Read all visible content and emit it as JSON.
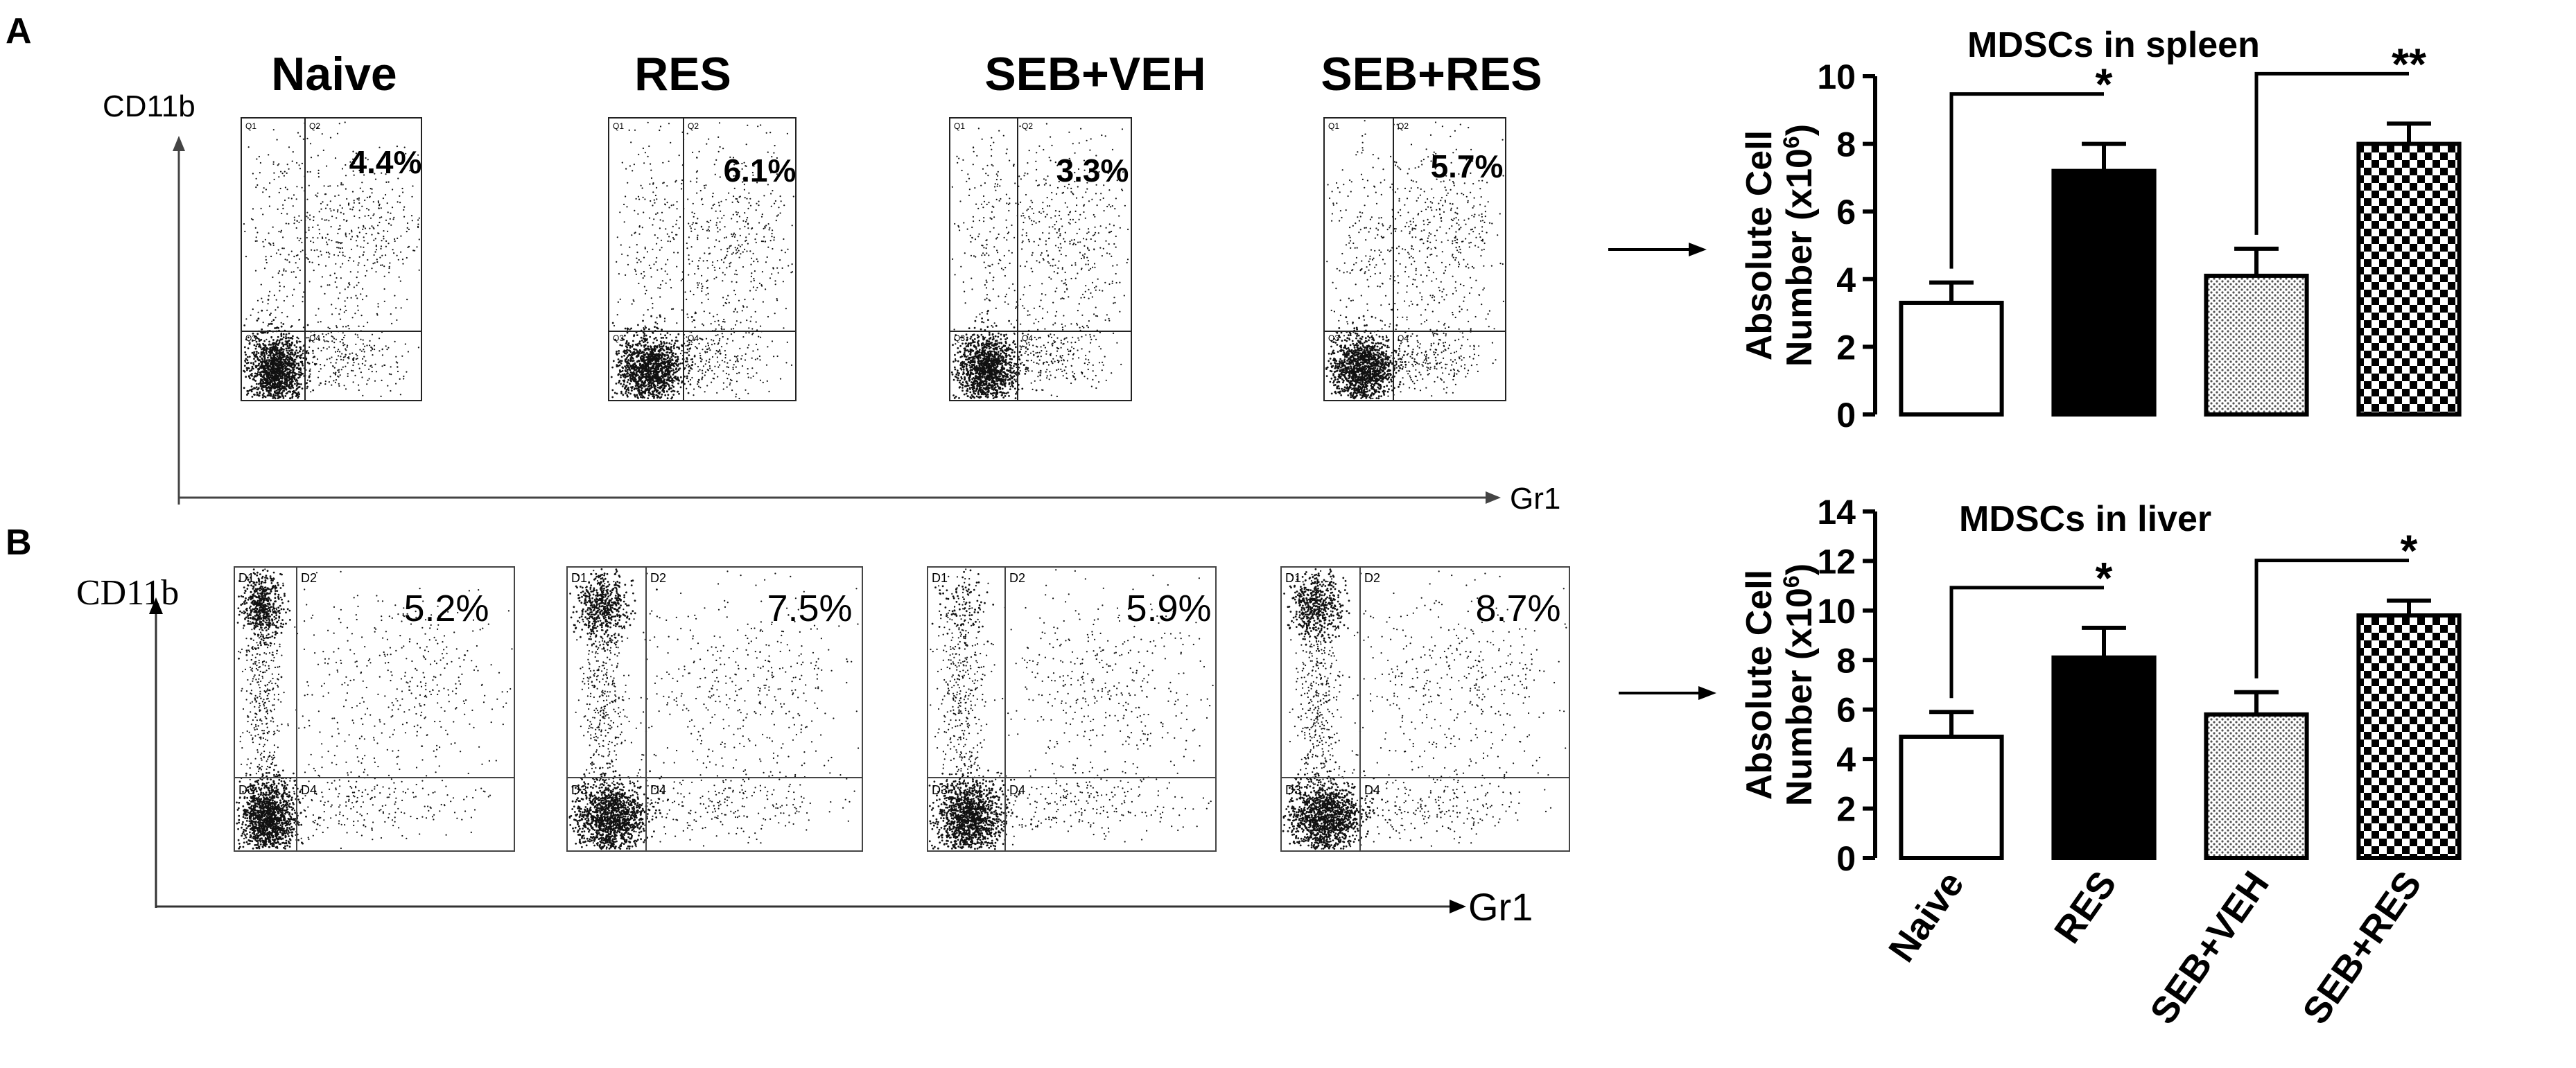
{
  "panels": [
    {
      "letter": "A",
      "y_marker": "CD11b",
      "x_marker": "Gr1",
      "dense_style": true,
      "plots": [
        {
          "title": "Naive",
          "percent": "4.4%",
          "quad": [
            "Q1",
            "Q2",
            "Q3",
            "Q4"
          ]
        },
        {
          "title": "RES",
          "percent": "6.1%",
          "quad": [
            "Q1",
            "Q2",
            "Q3",
            "Q4"
          ]
        },
        {
          "title": "SEB+VEH",
          "percent": "3.3%",
          "quad": [
            "Q1",
            "Q2",
            "Q3",
            "Q4"
          ]
        },
        {
          "title": "SEB+RES",
          "percent": "5.7%",
          "quad": [
            "Q1",
            "Q2",
            "Q3",
            "Q4"
          ]
        }
      ]
    },
    {
      "letter": "B",
      "y_marker": "CD11b",
      "x_marker": "Gr1",
      "dense_style": false,
      "plots": [
        {
          "title": "",
          "percent": "5.2%",
          "quad": [
            "D1",
            "D2",
            "D3",
            "D4"
          ]
        },
        {
          "title": "",
          "percent": "7.5%",
          "quad": [
            "D1",
            "D2",
            "D3",
            "D4"
          ]
        },
        {
          "title": "",
          "percent": "5.9%",
          "quad": [
            "D1",
            "D2",
            "D3",
            "D4"
          ]
        },
        {
          "title": "",
          "percent": "8.7%",
          "quad": [
            "D1",
            "D2",
            "D3",
            "D4"
          ]
        }
      ]
    }
  ],
  "chart_data": [
    {
      "type": "bar",
      "title": "MDSCs in spleen",
      "ylabel_line1": "Absolute Cell",
      "ylabel_line2": "Number (x10",
      "ylabel_sup": "6",
      "ylabel_end": ")",
      "categories": [
        "Naive",
        "RES",
        "SEB+VEH",
        "SEB+RES"
      ],
      "values": [
        3.3,
        7.2,
        4.1,
        8.0
      ],
      "errors": [
        0.6,
        0.8,
        0.8,
        0.6
      ],
      "ylim": [
        0,
        10
      ],
      "yticks": [
        0,
        2,
        4,
        6,
        8,
        10
      ],
      "fills": [
        "white",
        "black",
        "dots",
        "checker"
      ],
      "significance": [
        {
          "from": 0,
          "to": 1,
          "label": "*"
        },
        {
          "from": 2,
          "to": 3,
          "label": "**"
        }
      ]
    },
    {
      "type": "bar",
      "title": "MDSCs in liver",
      "ylabel_line1": "Absolute Cell",
      "ylabel_line2": "Number (x10",
      "ylabel_sup": "6",
      "ylabel_end": ")",
      "categories": [
        "Naive",
        "RES",
        "SEB+VEH",
        "SEB+RES"
      ],
      "values": [
        4.9,
        8.1,
        5.8,
        9.8
      ],
      "errors": [
        1.0,
        1.2,
        0.9,
        0.6
      ],
      "ylim": [
        0,
        14
      ],
      "yticks": [
        0,
        2,
        4,
        6,
        8,
        10,
        12,
        14
      ],
      "fills": [
        "white",
        "black",
        "dots",
        "checker"
      ],
      "significance": [
        {
          "from": 0,
          "to": 1,
          "label": "*"
        },
        {
          "from": 2,
          "to": 3,
          "label": "*"
        }
      ]
    }
  ]
}
